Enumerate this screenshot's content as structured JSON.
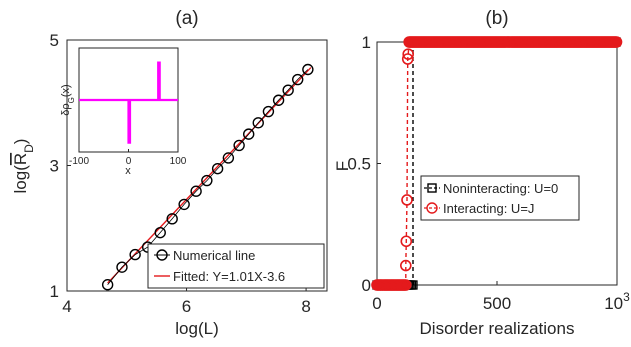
{
  "chart_data": [
    {
      "panel_label": "(a)",
      "type": "scatter",
      "xlabel": "log(L)",
      "ylabel": "log(R_D)",
      "ylabel_main": "log(",
      "ylabel_sub": "D",
      "ylabel_end": ")",
      "ylabel_overbar_letter": "R",
      "xlim": [
        4,
        8.35
      ],
      "ylim": [
        1,
        5
      ],
      "xticks": [
        4,
        6,
        8
      ],
      "yticks": [
        1,
        3,
        5
      ],
      "series": [
        {
          "name": "Numerical line",
          "marker": "open-circle",
          "color": "#000000",
          "x": [
            4.68,
            4.92,
            5.14,
            5.35,
            5.56,
            5.76,
            5.96,
            6.16,
            6.34,
            6.52,
            6.7,
            6.88,
            7.04,
            7.2,
            7.37,
            7.54,
            7.7,
            7.86,
            8.03
          ],
          "y": [
            1.1,
            1.38,
            1.58,
            1.7,
            1.93,
            2.15,
            2.38,
            2.59,
            2.76,
            2.95,
            3.12,
            3.32,
            3.5,
            3.68,
            3.86,
            4.04,
            4.2,
            4.37,
            4.53
          ]
        },
        {
          "name": "Fitted: Y=1.01X-3.6",
          "type": "line",
          "color": "#e41a1c",
          "slope": 1.01,
          "intercept": -3.6,
          "x_range": [
            4.68,
            8.08
          ]
        }
      ],
      "legend": {
        "placement": "bottom-right",
        "entries": [
          "Numerical line",
          "Fitted: Y=1.01X-3.6"
        ]
      },
      "inset": {
        "type": "line",
        "xlabel": "x",
        "ylabel": "δρ_G(x)",
        "ylabel_main": "δρ",
        "ylabel_sub": "G",
        "ylabel_end": "(x)",
        "xlim": [
          -100,
          100
        ],
        "xticks": [
          -100,
          0,
          100
        ],
        "color": "#ff00ff",
        "baseline": 0,
        "ylim": [
          -1,
          1
        ],
        "spikes": [
          {
            "x": 0,
            "y": -0.82
          },
          {
            "x": 60,
            "y": 0.72
          }
        ]
      }
    },
    {
      "panel_label": "(b)",
      "type": "scatter",
      "xlabel": "Disorder realizations",
      "ylabel": "F",
      "xlim": [
        0,
        1000
      ],
      "ylim": [
        0,
        1
      ],
      "xticks": [
        "0",
        "500",
        "10"
      ],
      "xtick_values": [
        0,
        500,
        1000
      ],
      "xtick_last_superscript": "3",
      "yticks": [
        "0",
        "0.5",
        "1"
      ],
      "ytick_values": [
        0,
        0.5,
        1
      ],
      "series": [
        {
          "name": "Noninteracting: U=0",
          "marker": "open-square",
          "color": "#000000",
          "line": "dashed",
          "step_at": 150,
          "low": 0,
          "high": 1
        },
        {
          "name": "Interacting: U=J",
          "marker": "open-circle",
          "color": "#e41a1c",
          "line": "dashed",
          "transition_x": [
            120,
            122,
            125,
            128,
            130
          ],
          "transition_y": [
            0.08,
            0.18,
            0.35,
            0.93,
            0.95
          ],
          "low": 0,
          "high": 1
        }
      ],
      "legend": {
        "placement": "center-right",
        "entries": [
          "Noninteracting: U=0",
          "Interacting: U=J"
        ]
      }
    }
  ]
}
